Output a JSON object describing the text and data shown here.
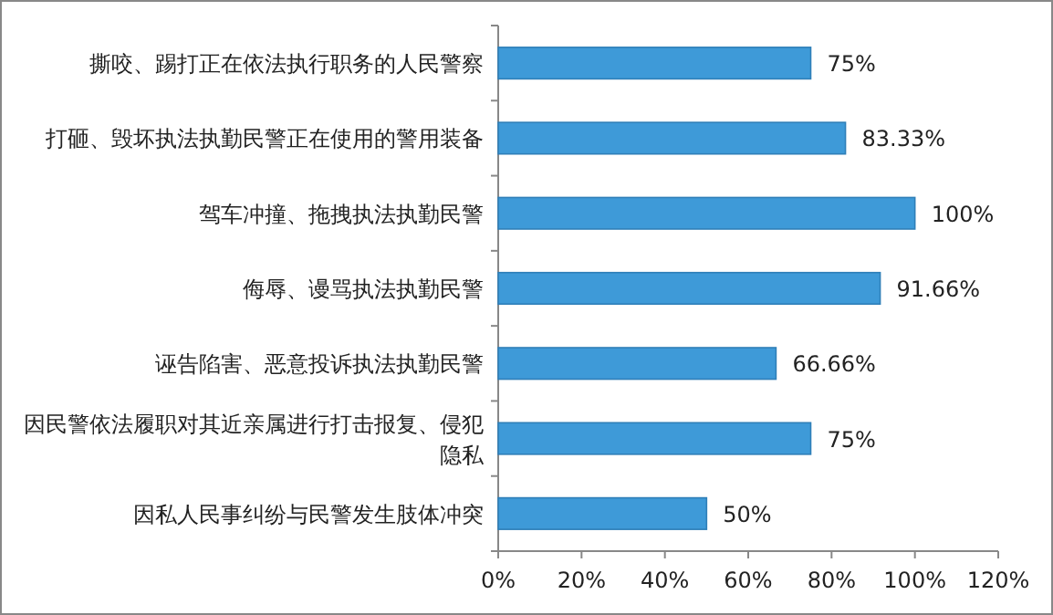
{
  "chart_data": {
    "type": "bar",
    "orientation": "horizontal",
    "categories": [
      "撕咬、踢打正在依法执行职务的人民警察",
      "打砸、毁坏执法执勤民警正在使用的警用装备",
      "驾车冲撞、拖拽执法执勤民警",
      "侮辱、谩骂执法执勤民警",
      "诬告陷害、恶意投诉执法执勤民警",
      "因民警依法履职对其近亲属进行打击报复、侵犯隐私",
      "因私人民事纠纷与民警发生肢体冲突"
    ],
    "values": [
      75,
      83.33,
      100,
      91.66,
      66.66,
      75,
      50
    ],
    "value_labels": [
      "75%",
      "83.33%",
      "100%",
      "91.66%",
      "66.66%",
      "75%",
      "50%"
    ],
    "color": "#3e9ad8",
    "xlim": [
      0,
      120
    ],
    "xticks": [
      {
        "value": 0,
        "label": "0%"
      },
      {
        "value": 20,
        "label": "20%"
      },
      {
        "value": 40,
        "label": "40%"
      },
      {
        "value": 60,
        "label": "60%"
      },
      {
        "value": 80,
        "label": "80%"
      },
      {
        "value": 100,
        "label": "100%"
      },
      {
        "value": 120,
        "label": "120%"
      }
    ]
  }
}
